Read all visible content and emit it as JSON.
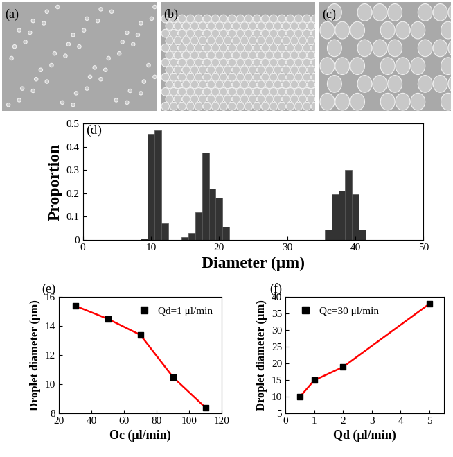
{
  "chart_data": [
    {
      "type": "image",
      "label": "(a)"
    },
    {
      "type": "image",
      "label": "(b)"
    },
    {
      "type": "image",
      "label": "(c)"
    },
    {
      "type": "bar",
      "label": "(d)",
      "x": [
        9,
        10,
        11,
        12,
        15,
        16,
        17,
        18,
        19,
        20,
        21,
        36,
        37,
        38,
        39,
        40,
        41
      ],
      "values": [
        0.005,
        0.455,
        0.47,
        0.07,
        0.012,
        0.03,
        0.12,
        0.375,
        0.22,
        0.18,
        0.055,
        0.045,
        0.195,
        0.21,
        0.3,
        0.195,
        0.045
      ],
      "color": "#333333",
      "x_label": "Diameter (μm)",
      "y_label": "Proportion",
      "xlim": [
        0,
        50
      ],
      "xticks": [
        0,
        10,
        20,
        30,
        40,
        50
      ],
      "ylim": [
        0,
        0.5
      ],
      "yticks": [
        0,
        0.1,
        0.2,
        0.3,
        0.4,
        0.5
      ]
    },
    {
      "type": "scatter",
      "label": "(e)",
      "x": [
        30,
        50,
        70,
        90,
        110
      ],
      "series": [
        {
          "name": "Qd=1 μl/min",
          "type": "scatter",
          "color": "#000000",
          "marker": "square",
          "values": [
            15.4,
            14.5,
            13.4,
            10.5,
            8.4
          ]
        },
        {
          "type": "line",
          "color": "#ff0000",
          "line_style": "solid",
          "values": [
            15.4,
            14.5,
            13.4,
            10.5,
            8.4
          ]
        }
      ],
      "x_label": "Oc (μl/min)",
      "y_label": "Droplet diameter (μm)",
      "xlim": [
        20,
        120
      ],
      "xticks": [
        20,
        40,
        60,
        80,
        100,
        120
      ],
      "ylim": [
        8,
        16
      ],
      "yticks": [
        8,
        10,
        12,
        14,
        16
      ],
      "legend": "upper right"
    },
    {
      "type": "scatter",
      "label": "(f)",
      "x": [
        0.5,
        1,
        2,
        5
      ],
      "series": [
        {
          "name": "Qc=30 μl/min",
          "type": "scatter",
          "color": "#000000",
          "marker": "square",
          "values": [
            10,
            15,
            19,
            38
          ]
        },
        {
          "type": "line",
          "color": "#ff0000",
          "line_style": "solid",
          "values": [
            10,
            15,
            19,
            38
          ]
        }
      ],
      "x_label": "Qd (μl/min)",
      "y_label": "Droplet diameter (μm)",
      "xlim": [
        0,
        5.5
      ],
      "xticks": [
        0,
        1,
        2,
        3,
        4,
        5
      ],
      "ylim": [
        5,
        40
      ],
      "yticks": [
        5,
        10,
        15,
        20,
        25,
        30,
        35,
        40
      ],
      "legend": "upper left"
    }
  ]
}
